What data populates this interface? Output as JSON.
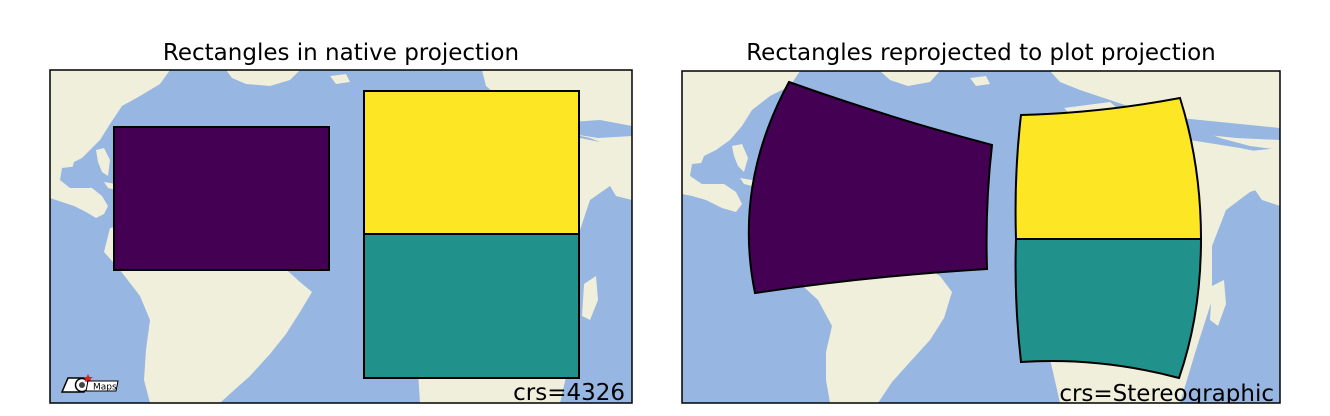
{
  "panels": [
    {
      "title": "Rectangles in native projection",
      "crs_label": "crs=4326",
      "rectangles": [
        {
          "color": "#440154",
          "value": 0.0
        },
        {
          "color": "#fde725",
          "value": 1.0
        },
        {
          "color": "#21918c",
          "value": 0.5
        }
      ]
    },
    {
      "title": "Rectangles reprojected to plot projection",
      "crs_label": "crs=Stereographic",
      "rectangles": [
        {
          "color": "#440154",
          "value": 0.0
        },
        {
          "color": "#fde725",
          "value": 1.0
        },
        {
          "color": "#21918c",
          "value": 0.5
        }
      ]
    }
  ],
  "logo": {
    "text": "Maps",
    "icon": "eomaps-logo-icon"
  },
  "colors": {
    "ocean": "#97b6e1",
    "land": "#efefdb",
    "outline": "#000000"
  }
}
